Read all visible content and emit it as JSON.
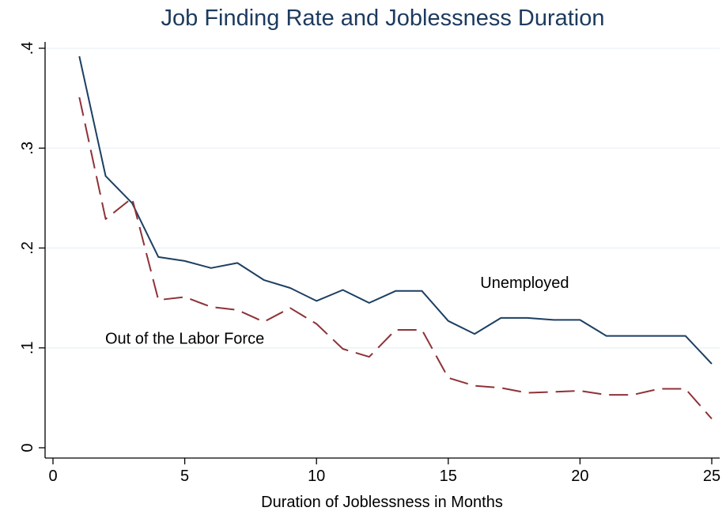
{
  "chart_data": {
    "type": "line",
    "title": "Job Finding Rate and Joblessness Duration",
    "xlabel": "Duration of Joblessness in Months",
    "ylabel": "",
    "xlim": [
      0,
      25
    ],
    "ylim": [
      0,
      0.4
    ],
    "xticks": [
      {
        "value": 0,
        "label": "0"
      },
      {
        "value": 5,
        "label": "5"
      },
      {
        "value": 10,
        "label": "10"
      },
      {
        "value": 15,
        "label": "15"
      },
      {
        "value": 20,
        "label": "20"
      },
      {
        "value": 25,
        "label": "25"
      }
    ],
    "yticks": [
      {
        "value": 0,
        "label": "0"
      },
      {
        "value": 0.1,
        "label": ".1"
      },
      {
        "value": 0.2,
        "label": ".2"
      },
      {
        "value": 0.3,
        "label": ".3"
      },
      {
        "value": 0.4,
        "label": ".4"
      }
    ],
    "grid": true,
    "legend": "none",
    "x": [
      1,
      2,
      3,
      4,
      5,
      6,
      7,
      8,
      9,
      10,
      11,
      12,
      13,
      14,
      15,
      16,
      17,
      18,
      19,
      20,
      21,
      22,
      23,
      24,
      25
    ],
    "series": [
      {
        "name": "Unemployed",
        "color": "#1c3f62",
        "dash": "solid",
        "values": [
          0.392,
          0.272,
          0.245,
          0.191,
          0.187,
          0.18,
          0.185,
          0.168,
          0.16,
          0.147,
          0.158,
          0.145,
          0.157,
          0.157,
          0.127,
          0.114,
          0.13,
          0.13,
          0.128,
          0.128,
          0.112,
          0.112,
          0.112,
          0.112,
          0.084
        ]
      },
      {
        "name": "Out of the Labor Force",
        "color": "#8e3238",
        "dash": "dashed",
        "values": [
          0.351,
          0.229,
          0.25,
          0.148,
          0.151,
          0.141,
          0.138,
          0.126,
          0.14,
          0.124,
          0.099,
          0.091,
          0.118,
          0.118,
          0.07,
          0.062,
          0.06,
          0.055,
          0.056,
          0.057,
          0.053,
          0.053,
          0.059,
          0.059,
          0.029
        ]
      }
    ],
    "annotations": [
      {
        "text": "Unemployed",
        "x": 17.9,
        "y": 0.16,
        "color": "#000000"
      },
      {
        "text": "Out of the Labor Force",
        "x": 5.0,
        "y": 0.104,
        "color": "#8e3238"
      }
    ]
  }
}
